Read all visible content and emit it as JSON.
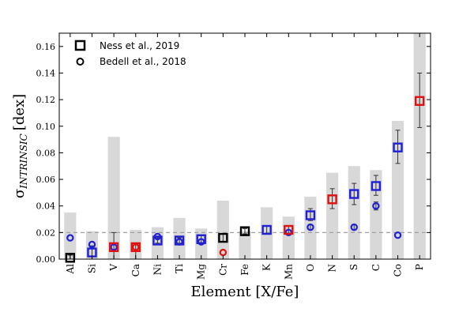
{
  "chart_data": {
    "type": "bar",
    "xlabel": "Element [X/Fe]",
    "ylabel": {
      "symbol": "σ",
      "subscript": "INTRINSIC",
      "unit": "[dex]"
    },
    "ylim": [
      0,
      0.17
    ],
    "yticks": [
      "0.00",
      "0.02",
      "0.04",
      "0.06",
      "0.08",
      "0.10",
      "0.12",
      "0.14",
      "0.16"
    ],
    "ytick_values": [
      0,
      0.02,
      0.04,
      0.06,
      0.08,
      0.1,
      0.12,
      0.14,
      0.16
    ],
    "reference_line": 0.02,
    "categories": [
      "Al",
      "Si",
      "V",
      "Ca",
      "Ni",
      "Ti",
      "Mg",
      "Cr",
      "Fe",
      "K",
      "Mn",
      "O",
      "N",
      "S",
      "C",
      "Co",
      "P"
    ],
    "bar_values": [
      0.035,
      0.021,
      0.092,
      0.022,
      0.024,
      0.031,
      0.023,
      0.044,
      0.021,
      0.039,
      0.032,
      0.047,
      0.065,
      0.07,
      0.067,
      0.104,
      0.17
    ],
    "ness_2019": {
      "values": [
        0.001,
        0.005,
        0.009,
        0.009,
        0.014,
        0.014,
        0.015,
        0.016,
        0.021,
        0.022,
        0.022,
        0.033,
        0.045,
        0.049,
        0.055,
        0.084,
        0.119
      ],
      "err_low": [
        0.0,
        0.0,
        0.0,
        0.0,
        0.012,
        0.012,
        0.012,
        0.013,
        0.019,
        0.019,
        0.019,
        0.029,
        0.038,
        0.041,
        0.048,
        0.072,
        0.099
      ],
      "err_high": [
        0.003,
        0.01,
        0.02,
        0.011,
        0.016,
        0.016,
        0.018,
        0.019,
        0.023,
        0.025,
        0.025,
        0.038,
        0.053,
        0.057,
        0.063,
        0.097,
        0.14
      ],
      "colors": [
        "black",
        "blue",
        "red",
        "red",
        "blue",
        "blue",
        "blue",
        "black",
        "black",
        "blue",
        "red",
        "blue",
        "red",
        "blue",
        "blue",
        "blue",
        "red"
      ]
    },
    "bedell_2018": {
      "values": [
        0.016,
        0.011,
        0.009,
        0.009,
        0.017,
        0.013,
        0.013,
        0.005,
        null,
        null,
        0.02,
        0.024,
        null,
        0.024,
        0.04,
        0.018,
        null
      ],
      "err_low": [
        null,
        null,
        null,
        null,
        null,
        null,
        null,
        null,
        null,
        null,
        null,
        0.022,
        null,
        0.022,
        0.037,
        null,
        null
      ],
      "err_high": [
        null,
        null,
        null,
        null,
        null,
        null,
        null,
        null,
        null,
        null,
        null,
        0.026,
        null,
        0.026,
        0.043,
        null,
        null
      ],
      "colors": [
        "blue",
        "blue",
        "blue",
        "red",
        "blue",
        "blue",
        "blue",
        "red",
        null,
        null,
        "blue",
        "blue",
        null,
        "blue",
        "blue",
        "blue",
        null
      ]
    },
    "legend": {
      "position": "upper-left",
      "entries": [
        {
          "label": "Ness et al., 2019",
          "marker": "square"
        },
        {
          "label": "Bedell et al., 2018",
          "marker": "circle"
        }
      ]
    },
    "colors": {
      "bar": "#d8d8d8",
      "blue": "#1f1fd6",
      "red": "#e01010",
      "black": "#000000",
      "refline": "#a0a0a0"
    }
  }
}
